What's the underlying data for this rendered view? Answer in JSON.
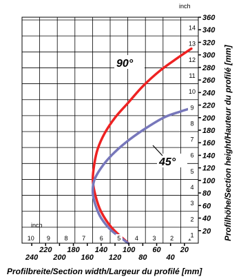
{
  "chart_data": {
    "type": "line",
    "xlabel": "Profilbreite/Section width/Largeur du profilé [mm]",
    "ylabel": "Profilhöhe/Section height/Hauteur du profilé [mm]",
    "x_inch_unit": "inch",
    "y_inch_unit": "inch",
    "x_inch_ticks": [
      "10",
      "9",
      "8",
      "7",
      "6",
      "5",
      "4",
      "3",
      "2",
      "1"
    ],
    "x_mm_ticks_upper": [
      "220",
      "180",
      "140",
      "100",
      "60",
      "20"
    ],
    "x_mm_ticks_lower": [
      "240",
      "200",
      "160",
      "120",
      "80",
      "40"
    ],
    "y_inch_ticks": [
      "1",
      "2",
      "3",
      "4",
      "5",
      "6",
      "7",
      "8",
      "9",
      "10",
      "11",
      "12",
      "13",
      "14"
    ],
    "y_mm_ticks": [
      "20",
      "40",
      "60",
      "80",
      "100",
      "120",
      "140",
      "160",
      "180",
      "200",
      "220",
      "240",
      "260",
      "280",
      "300",
      "320",
      "340",
      "360"
    ],
    "xlim_mm": [
      0,
      254
    ],
    "ylim_mm": [
      0,
      360
    ],
    "x_reversed": true,
    "grid": true,
    "series": [
      {
        "name": "90°",
        "color": "#ee2222",
        "x": [
          101,
          125,
          140,
          148,
          152,
          150,
          145,
          135,
          120,
          100,
          80,
          55,
          30,
          10
        ],
        "y": [
          0,
          25,
          50,
          75,
          100,
          125,
          150,
          175,
          200,
          225,
          250,
          275,
          295,
          310
        ]
      },
      {
        "name": "45°",
        "color": "#7777bb",
        "x": [
          101,
          125,
          140,
          148,
          152,
          150,
          140,
          125,
          105,
          80,
          50,
          25,
          10
        ],
        "y": [
          0,
          20,
          40,
          60,
          80,
          100,
          120,
          140,
          160,
          180,
          200,
          210,
          215
        ]
      }
    ]
  }
}
